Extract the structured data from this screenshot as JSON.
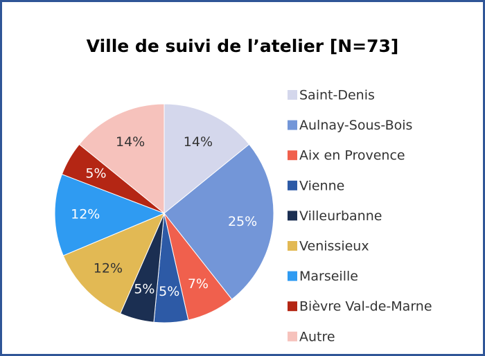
{
  "chart_data": {
    "type": "pie",
    "title": "Ville de suivi de l’atelier [N=73]",
    "categories": [
      "Saint-Denis",
      "Aulnay-Sous-Bois",
      "Aix en Provence",
      "Vienne",
      "Villeurbanne",
      "Venissieux",
      "Marseille",
      "Bièvre Val-de-Marne",
      "Autre"
    ],
    "values": [
      14,
      25,
      7,
      5,
      5,
      12,
      12,
      5,
      14
    ],
    "value_labels": [
      "14%",
      "25%",
      "7%",
      "5%",
      "5%",
      "12%",
      "12%",
      "5%",
      "14%"
    ],
    "colors": [
      "#d4d7ec",
      "#7396d8",
      "#f0604d",
      "#2d5aa6",
      "#1b2f52",
      "#e2b954",
      "#2f9bf2",
      "#b42614",
      "#f6c2bc"
    ],
    "legend": "right"
  }
}
